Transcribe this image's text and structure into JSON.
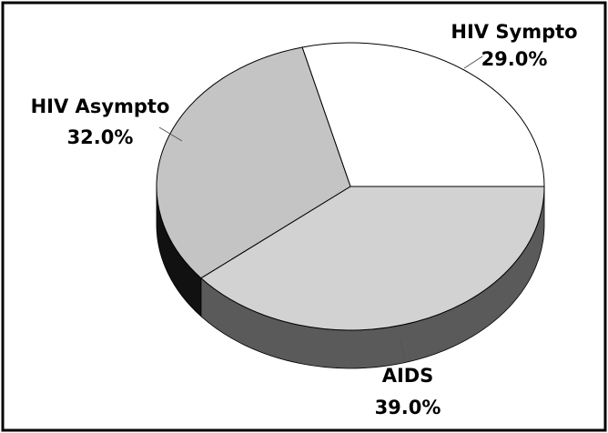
{
  "chart_data": {
    "type": "pie",
    "categories": [
      "HIV Sympto",
      "AIDS",
      "HIV Asympto"
    ],
    "values": [
      29,
      39,
      32
    ],
    "value_labels": [
      "29.0%",
      "39.0%",
      "32.0%"
    ],
    "colors": [
      "#ffffff",
      "#d2d2d2",
      "#c4c4c4"
    ],
    "side_colors": [
      "#888888",
      "#5a5a5a",
      "#111111"
    ]
  }
}
